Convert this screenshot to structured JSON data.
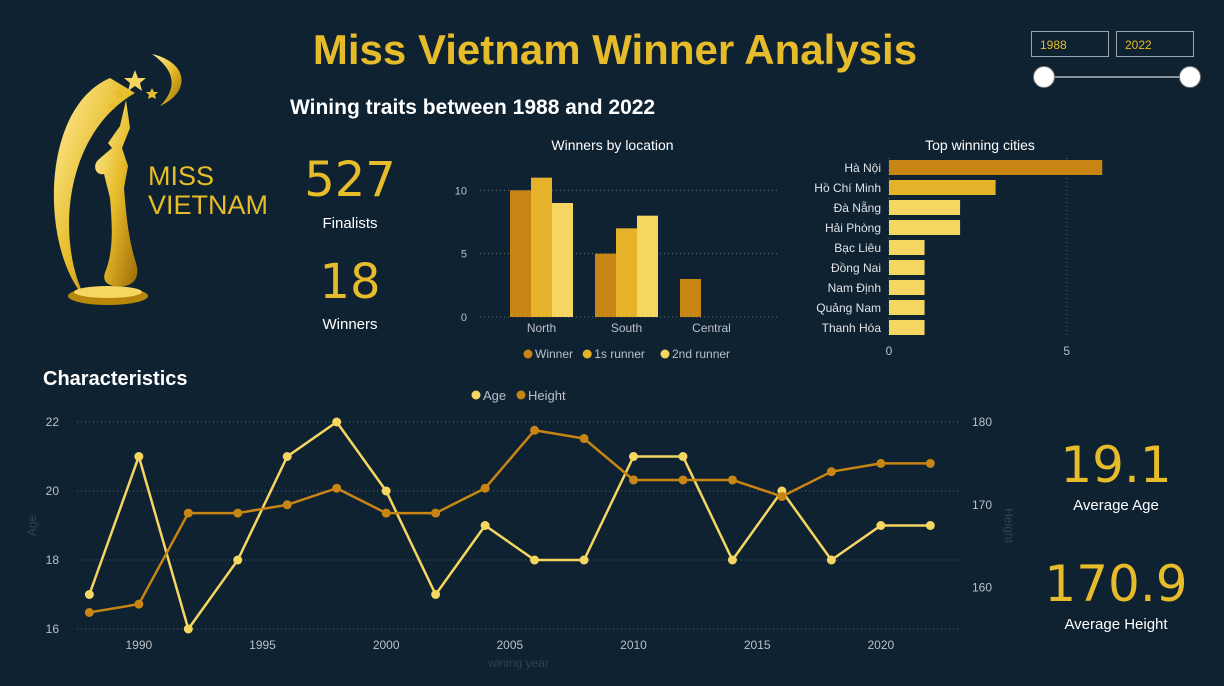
{
  "header": {
    "title": "Miss Vietnam Winner Analysis",
    "subtitle": "Wining traits between 1988 and 2022"
  },
  "logo": {
    "line1": "MISS",
    "line2": "VIETNAM"
  },
  "slicer": {
    "start_value": "1988",
    "end_value": "2022",
    "range": [
      1988,
      2022
    ]
  },
  "kpis": {
    "finalists": {
      "value": "527",
      "label": "Finalists"
    },
    "winners": {
      "value": "18",
      "label": "Winners"
    },
    "average_age": {
      "value": "19.1",
      "label": "Average Age"
    },
    "average_height": {
      "value": "170.9",
      "label": "Average Height"
    }
  },
  "sections": {
    "characteristics_title": "Characteristics"
  },
  "colors": {
    "background": "#0f2232",
    "gold_dark": "#c98514",
    "gold_mid": "#e5b22a",
    "gold_light": "#f4d660",
    "title_gold": "#e7bc2a"
  },
  "chart_data": [
    {
      "type": "bar",
      "title": "Winners by location",
      "categories": [
        "North",
        "South",
        "Central"
      ],
      "series": [
        {
          "name": "Winner",
          "values": [
            10,
            5,
            3
          ],
          "color": "#c98514"
        },
        {
          "name": "1s runner",
          "values": [
            11,
            7,
            null
          ],
          "color": "#e5b22a"
        },
        {
          "name": "2nd runner",
          "values": [
            9,
            8,
            null
          ],
          "color": "#f4d660"
        }
      ],
      "ylim": [
        0,
        12
      ],
      "yticks": [
        "0",
        "5",
        "10"
      ],
      "legend": "bottom",
      "grid": true
    },
    {
      "type": "bar",
      "orientation": "horizontal",
      "title": "Top winning cities",
      "categories": [
        "Hà Nội",
        "Hồ Chí Minh",
        "Đà Nẵng",
        "Hải Phòng",
        "Bạc Liêu",
        "Đồng Nai",
        "Nam Định",
        "Quảng Nam",
        "Thanh Hóa"
      ],
      "values": [
        6,
        3,
        2,
        2,
        1,
        1,
        1,
        1,
        1
      ],
      "colors": [
        "#c98514",
        "#e5b22a",
        "#f4d660",
        "#f4d660",
        "#f4d660",
        "#f4d660",
        "#f4d660",
        "#f4d660",
        "#f4d660"
      ],
      "xlim": [
        0,
        6.5
      ],
      "xticks": [
        "0",
        "5"
      ],
      "grid": true
    },
    {
      "type": "line",
      "title": "",
      "x": [
        1988,
        1990,
        1992,
        1994,
        1996,
        1998,
        2000,
        2002,
        2004,
        2006,
        2008,
        2010,
        2012,
        2014,
        2016,
        2018,
        2020,
        2022
      ],
      "series": [
        {
          "name": "Age",
          "axis": "left",
          "color": "#f4d660",
          "values": [
            17,
            21,
            16,
            18,
            21,
            22,
            20,
            17,
            19,
            18,
            18,
            21,
            21,
            18,
            20,
            18,
            19,
            19
          ]
        },
        {
          "name": "Height",
          "axis": "right",
          "color": "#c98514",
          "values": [
            157,
            158,
            169,
            169,
            170,
            172,
            169,
            169,
            172,
            179,
            178,
            173,
            173,
            173,
            171,
            174,
            175,
            175
          ]
        }
      ],
      "xlabel": "wining year",
      "ylabel_left": "Age",
      "ylabel_right": "Height",
      "xticks": [
        "1990",
        "1995",
        "2000",
        "2005",
        "2010",
        "2015",
        "2020"
      ],
      "ylim_left": [
        16,
        22
      ],
      "yticks_left": [
        "16",
        "18",
        "20",
        "22"
      ],
      "ylim_right": [
        155,
        180
      ],
      "yticks_right": [
        "160",
        "170",
        "180"
      ],
      "legend": "top",
      "grid": true
    }
  ]
}
